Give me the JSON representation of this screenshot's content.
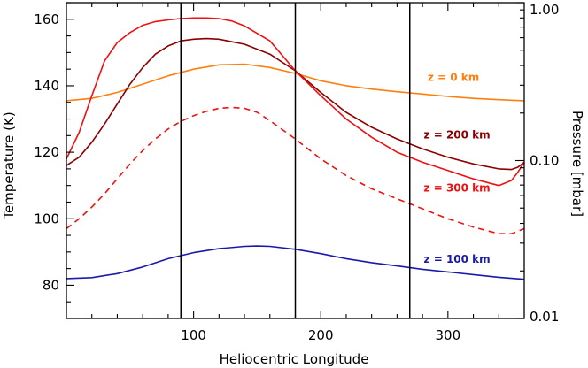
{
  "chart_data": {
    "type": "line",
    "xlabel": "Heliocentric Longitude",
    "ylabel": "Temperature (K)",
    "y2label": "Pressure [mbar]",
    "xlim": [
      0,
      360
    ],
    "ylim": [
      70,
      165
    ],
    "y2lim_log": [
      0.01,
      1.0
    ],
    "xticks": [
      100,
      200,
      300
    ],
    "xtick_labels": [
      "100",
      "200",
      "300"
    ],
    "yticks": [
      80,
      100,
      120,
      140,
      160
    ],
    "ytick_labels": [
      "80",
      "100",
      "120",
      "140",
      "160"
    ],
    "y2ticks": [
      0.01,
      0.1,
      1.0
    ],
    "y2tick_labels": [
      "0.01",
      "0.10",
      "1.00"
    ],
    "vlines": [
      90,
      180,
      270
    ],
    "series": [
      {
        "name": "z = 0 km",
        "color": "#ff7f0e",
        "dash": false,
        "x": [
          0,
          20,
          40,
          60,
          80,
          100,
          120,
          140,
          160,
          180,
          200,
          220,
          240,
          260,
          280,
          300,
          320,
          340,
          360
        ],
        "y": [
          135.5,
          136.2,
          138,
          140.5,
          143,
          145,
          146.3,
          146.5,
          145.5,
          143.7,
          141.5,
          140,
          139,
          138.2,
          137.5,
          136.8,
          136.2,
          135.8,
          135.5
        ]
      },
      {
        "name": "z = 200 km",
        "color": "#8b0000",
        "dash": false,
        "x": [
          0,
          10,
          20,
          30,
          40,
          50,
          60,
          70,
          80,
          90,
          100,
          110,
          120,
          140,
          160,
          180,
          200,
          220,
          240,
          260,
          280,
          300,
          320,
          340,
          350,
          355,
          360
        ],
        "y": [
          116,
          118.5,
          123,
          128.5,
          134.5,
          140.5,
          145.5,
          149.5,
          152,
          153.5,
          154,
          154.2,
          154,
          152.5,
          149.5,
          144.5,
          138,
          132,
          127.5,
          124,
          121,
          118.5,
          116.5,
          115,
          114.8,
          115.5,
          117
        ]
      },
      {
        "name": "z = 300 km",
        "color": "#ee1111",
        "dash": false,
        "x": [
          0,
          10,
          20,
          30,
          40,
          50,
          60,
          70,
          80,
          90,
          100,
          110,
          120,
          130,
          140,
          160,
          180,
          200,
          220,
          240,
          260,
          280,
          300,
          320,
          340,
          350,
          355,
          360
        ],
        "y": [
          118,
          126,
          137,
          147.5,
          153,
          156,
          158.2,
          159.3,
          159.8,
          160.2,
          160.4,
          160.4,
          160.2,
          159.5,
          158,
          153.5,
          144.5,
          137,
          130,
          124.5,
          120,
          117,
          114.5,
          112,
          110,
          111.5,
          114,
          117
        ]
      },
      {
        "name": "",
        "color": "#ee1111",
        "dash": true,
        "x": [
          0,
          10,
          20,
          30,
          40,
          50,
          60,
          70,
          80,
          90,
          100,
          110,
          120,
          130,
          140,
          150,
          160,
          180,
          200,
          220,
          240,
          260,
          280,
          300,
          320,
          340,
          350,
          360
        ],
        "y": [
          97,
          100,
          103.5,
          107.5,
          112,
          116.5,
          120.5,
          124,
          127,
          129.3,
          131,
          132.3,
          133.2,
          133.5,
          133.2,
          132,
          129.5,
          124,
          118,
          113,
          109,
          106,
          103,
          100,
          97.5,
          95.5,
          95.5,
          97
        ]
      },
      {
        "name": "z = 100 km",
        "color": "#1a1aaa",
        "dash": false,
        "x": [
          0,
          20,
          40,
          60,
          80,
          100,
          120,
          140,
          150,
          160,
          180,
          200,
          220,
          240,
          260,
          280,
          300,
          320,
          340,
          360
        ],
        "y": [
          82,
          82.3,
          83.5,
          85.5,
          88,
          89.8,
          91,
          91.7,
          91.8,
          91.7,
          90.8,
          89.5,
          88,
          86.8,
          85.8,
          84.8,
          84,
          83.2,
          82.4,
          81.8
        ]
      }
    ],
    "annotations": [
      {
        "text": "z = 0 km",
        "color": "#ff7f0e",
        "x": 284,
        "y": 141.5
      },
      {
        "text": "z = 200 km",
        "color": "#8b0000",
        "x": 281,
        "y": 124.2
      },
      {
        "text": "z = 300 km",
        "color": "#ee1111",
        "x": 281,
        "y": 108.2
      },
      {
        "text": "z = 100 km",
        "color": "#1a1aaa",
        "x": 281,
        "y": 86.7
      }
    ]
  }
}
